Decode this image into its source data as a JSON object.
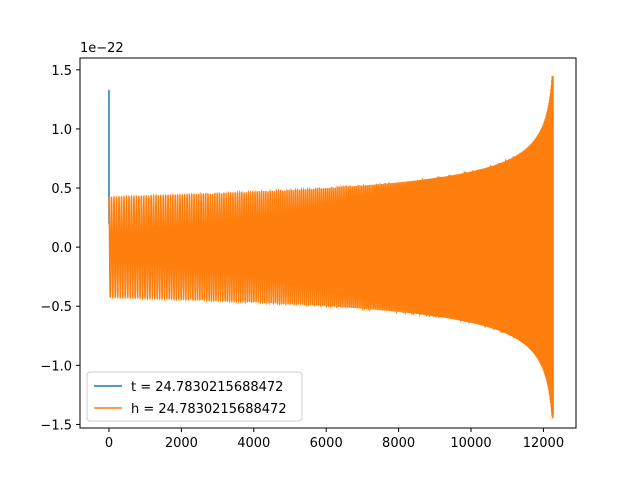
{
  "chart_data": {
    "type": "line",
    "title": "",
    "xlabel": "",
    "ylabel": "",
    "y_offset_label": "1e−22",
    "xlim": [
      -800,
      12900
    ],
    "ylim": [
      -1.53,
      1.6
    ],
    "x_ticks": [
      0,
      2000,
      4000,
      6000,
      8000,
      10000,
      12000
    ],
    "x_tick_labels": [
      "0",
      "2000",
      "4000",
      "6000",
      "8000",
      "10000",
      "12000"
    ],
    "y_ticks": [
      -1.5,
      -1.0,
      -0.5,
      0.0,
      0.5,
      1.0,
      1.5
    ],
    "y_tick_labels": [
      "−1.5",
      "−1.0",
      "−0.5",
      "0.0",
      "0.5",
      "1.0",
      "1.5"
    ],
    "grid": false,
    "legend_position": "lower-left",
    "series": [
      {
        "name": "t = 24.7830215688472",
        "color": "#1f77b4",
        "description_points": [
          [
            0,
            0.2
          ],
          [
            0,
            1.33
          ],
          [
            0,
            0.42
          ]
        ]
      },
      {
        "name": "h = 24.7830215688472",
        "color": "#ff7f0e",
        "envelope": {
          "x_start": 0,
          "x_end": 12270,
          "start_amplitude": 0.43,
          "end_amplitude": 1.45,
          "end_min": -1.4
        }
      }
    ]
  }
}
